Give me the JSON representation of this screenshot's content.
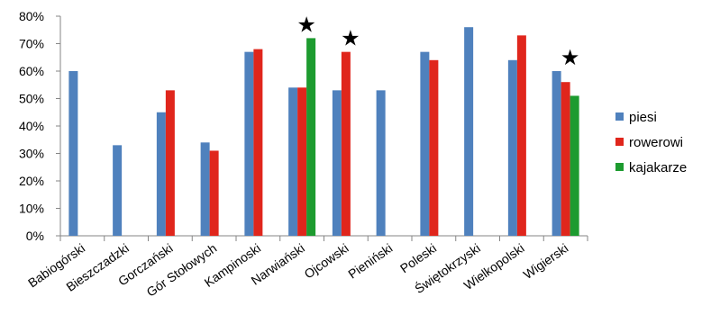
{
  "chart_data": {
    "type": "bar",
    "categories": [
      "Babiogórski",
      "Bieszczadzki",
      "Gorczański",
      "Gór Stołowych",
      "Kampinoski",
      "Narwiański",
      "Ojcowski",
      "Pieniński",
      "Poleski",
      "Świętokrzyski",
      "Wielkopolski",
      "Wigierski"
    ],
    "series": [
      {
        "name": "piesi",
        "color": "#4f81bd",
        "values": [
          60,
          33,
          45,
          34,
          67,
          54,
          53,
          53,
          67,
          76,
          64,
          60
        ]
      },
      {
        "name": "rowerowi",
        "color": "#e0261c",
        "values": [
          null,
          null,
          53,
          31,
          68,
          54,
          67,
          null,
          64,
          null,
          73,
          56
        ]
      },
      {
        "name": "kajakarze",
        "color": "#1d9b2f",
        "values": [
          null,
          null,
          null,
          null,
          null,
          72,
          null,
          null,
          null,
          null,
          null,
          51
        ]
      }
    ],
    "y_ticks": [
      "0%",
      "10%",
      "20%",
      "30%",
      "40%",
      "50%",
      "60%",
      "70%",
      "80%"
    ],
    "ylim": [
      0,
      80
    ],
    "grid": false,
    "legend_position": "right",
    "annotations": [
      {
        "text": "★",
        "category": "Narwiański"
      },
      {
        "text": "★",
        "category": "Ojcowski"
      },
      {
        "text": "★",
        "category": "Wigierski"
      }
    ],
    "title": "",
    "xlabel": "",
    "ylabel": ""
  }
}
